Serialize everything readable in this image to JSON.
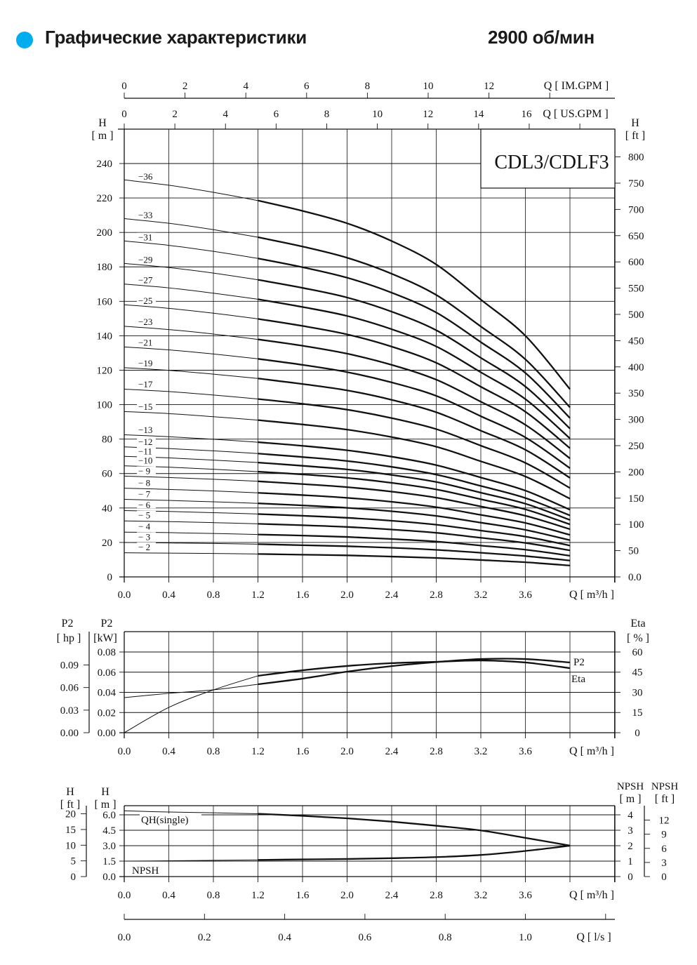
{
  "header": {
    "title": "Графические характеристики",
    "speed": "2900 об/мин",
    "bullet_color": "#00AEEF"
  },
  "chart_data": [
    {
      "id": "qh",
      "type": "line",
      "model_label": "CDL3/CDLF3",
      "x_label": "Q  [ m³/h ]",
      "x_ticks": [
        "0.0",
        "0.4",
        "0.8",
        "1.2",
        "1.6",
        "2.0",
        "2.4",
        "2.8",
        "3.2",
        "3.6"
      ],
      "xlim": [
        0,
        4.4
      ],
      "y_left_label": "H",
      "y_left_unit": "[ m ]",
      "y_left_ticks": [
        0,
        20,
        40,
        60,
        80,
        100,
        120,
        140,
        160,
        180,
        200,
        220,
        240
      ],
      "ylim": [
        0,
        256
      ],
      "y_right_label": "H",
      "y_right_unit": "[ ft ]",
      "y_right_ticks": [
        "0.0",
        "50",
        "100",
        "150",
        "200",
        "250",
        "300",
        "350",
        "400",
        "450",
        "500",
        "550",
        "600",
        "650",
        "700",
        "750",
        "800"
      ],
      "top_axis_us": {
        "label": "Q  [ US.GPM ]",
        "ticks": [
          "0",
          "2",
          "4",
          "6",
          "8",
          "10",
          "12",
          "14",
          "16"
        ]
      },
      "top_axis_im": {
        "label": "Q  [ IM.GPM ]",
        "ticks": [
          "0",
          "2",
          "4",
          "6",
          "8",
          "10",
          "12"
        ]
      },
      "grid": true,
      "x": [
        0,
        0.4,
        0.8,
        1.2,
        1.6,
        2.0,
        2.4,
        2.8,
        3.2,
        3.6,
        4.0
      ],
      "series": [
        {
          "name": "−36",
          "values": [
            230.5,
            227.4,
            223.3,
            218.5,
            212.5,
            205.3,
            195,
            181.4,
            161,
            140,
            109
          ]
        },
        {
          "name": "−33",
          "values": [
            208,
            205.3,
            201.6,
            197.2,
            191.8,
            185.3,
            176,
            163.7,
            145.4,
            126.3,
            98.4
          ]
        },
        {
          "name": "−31",
          "values": [
            195,
            192.5,
            189,
            184.9,
            179.8,
            173.7,
            165,
            153.5,
            136.3,
            118.4,
            92.2
          ]
        },
        {
          "name": "−29",
          "values": [
            182,
            179.6,
            176.4,
            172.5,
            167.8,
            162.2,
            154,
            143.2,
            127.2,
            110.5,
            86.1
          ]
        },
        {
          "name": "−27",
          "values": [
            170,
            167.8,
            164.7,
            161.2,
            156.7,
            151.5,
            143.8,
            133.8,
            118.8,
            103.2,
            80.4
          ]
        },
        {
          "name": "−25",
          "values": [
            158,
            155.9,
            153.1,
            149.8,
            145.7,
            140.8,
            133.7,
            124.3,
            110.4,
            95.9,
            74.7
          ]
        },
        {
          "name": "−23",
          "values": [
            145.5,
            143.6,
            141,
            137.9,
            134.2,
            129.6,
            123.1,
            114.5,
            101.7,
            88.3,
            68.8
          ]
        },
        {
          "name": "−21",
          "values": [
            133.5,
            131.8,
            129.4,
            126.6,
            123.1,
            118.9,
            112.9,
            105.1,
            93.3,
            81,
            63.1
          ]
        },
        {
          "name": "−19",
          "values": [
            121.5,
            119.9,
            117.7,
            115.2,
            112,
            108.3,
            102.8,
            95.6,
            84.9,
            73.8,
            57.5
          ]
        },
        {
          "name": "−17",
          "values": [
            109,
            107.6,
            105.6,
            103.3,
            100.5,
            97.1,
            92.2,
            85.8,
            76.2,
            66.2,
            51.6
          ]
        },
        {
          "name": "−15",
          "values": [
            96,
            94.8,
            93,
            91,
            88.5,
            85.5,
            81.2,
            75.6,
            67.1,
            58.3,
            45.4
          ]
        },
        {
          "name": "−13",
          "values": [
            82.5,
            81.4,
            79.9,
            78.2,
            76.1,
            73.5,
            69.8,
            64.9,
            57.7,
            50.1,
            39
          ]
        },
        {
          "name": "−12",
          "values": [
            75.5,
            74.5,
            73.2,
            71.6,
            69.6,
            67.3,
            63.9,
            59.4,
            52.8,
            45.8,
            35.7
          ]
        },
        {
          "name": "−11",
          "values": [
            70,
            69.1,
            67.8,
            66.4,
            64.5,
            62.4,
            59.2,
            55.1,
            48.9,
            42.5,
            33.1
          ]
        },
        {
          "name": "−10",
          "values": [
            64.5,
            63.7,
            62.5,
            61.1,
            59.5,
            57.5,
            54.6,
            50.8,
            45.1,
            39.2,
            30.5
          ]
        },
        {
          "name": "− 9",
          "values": [
            58.5,
            57.7,
            56.7,
            55.5,
            53.9,
            52.1,
            49.5,
            46,
            40.9,
            35.5,
            27.7
          ]
        },
        {
          "name": "− 8",
          "values": [
            51.5,
            50.8,
            49.9,
            48.8,
            47.5,
            45.9,
            43.6,
            40.5,
            36,
            31.3,
            24.4
          ]
        },
        {
          "name": "− 7",
          "values": [
            45,
            44.4,
            43.6,
            42.7,
            41.5,
            40.1,
            38.1,
            35.4,
            31.5,
            27.3,
            21.3
          ]
        },
        {
          "name": "− 6",
          "values": [
            38.5,
            38,
            37.3,
            36.5,
            35.5,
            34.3,
            32.6,
            30.3,
            26.9,
            23.4,
            18.2
          ]
        },
        {
          "name": "− 5",
          "values": [
            32.5,
            32.1,
            31.5,
            30.8,
            30,
            29,
            27.5,
            25.6,
            22.7,
            19.7,
            15.4
          ]
        },
        {
          "name": "− 4",
          "values": [
            26,
            25.7,
            25.2,
            24.6,
            24,
            23.2,
            22,
            20.5,
            18.2,
            15.8,
            12.3
          ]
        },
        {
          "name": "− 3",
          "values": [
            20,
            19.7,
            19.4,
            19,
            18.4,
            17.8,
            16.9,
            15.7,
            14,
            12.1,
            9.5
          ]
        },
        {
          "name": "− 2",
          "values": [
            14,
            13.8,
            13.6,
            13.3,
            12.9,
            12.5,
            11.8,
            11,
            9.8,
            8.5,
            6.6
          ]
        }
      ]
    },
    {
      "id": "power",
      "type": "line",
      "x_label": "Q  [ m³/h ]",
      "x_ticks": [
        "0.0",
        "0.4",
        "0.8",
        "1.2",
        "1.6",
        "2.0",
        "2.4",
        "2.8",
        "3.2",
        "3.6"
      ],
      "xlim": [
        0,
        4.4
      ],
      "y_left_label": "P2",
      "y_left_unit": "[kW]",
      "y_left_ticks": [
        "0.00",
        "0.02",
        "0.04",
        "0.06",
        "0.08"
      ],
      "ylim": [
        0,
        0.1
      ],
      "y_hp_label": "P2",
      "y_hp_unit": "[ hp ]",
      "y_hp_ticks": [
        "0.00",
        "0.03",
        "0.06",
        "0.09"
      ],
      "y_right_label": "Eta",
      "y_right_unit": "[ % ]",
      "y_right_ticks": [
        "0",
        "15",
        "30",
        "45",
        "60"
      ],
      "grid": true,
      "x": [
        0,
        0.4,
        0.8,
        1.2,
        1.6,
        2.0,
        2.4,
        2.8,
        3.2,
        3.6,
        4.0
      ],
      "series": [
        {
          "name": "P2",
          "axis": "kW",
          "values": [
            0.0348,
            0.039,
            0.0425,
            0.048,
            0.0536,
            0.0605,
            0.066,
            0.07,
            0.073,
            0.073,
            0.0696
          ]
        },
        {
          "name": "Eta",
          "axis": "%",
          "values": [
            0,
            18.8,
            31.8,
            42.3,
            46.4,
            49.6,
            51.7,
            52.7,
            53.7,
            52.2,
            48
          ]
        }
      ]
    },
    {
      "id": "npsh",
      "type": "line",
      "x_label": "Q  [ m³/h ]",
      "x_ticks": [
        "0.0",
        "0.4",
        "0.8",
        "1.2",
        "1.6",
        "2.0",
        "2.4",
        "2.8",
        "3.2",
        "3.6"
      ],
      "xlim": [
        0,
        4.4
      ],
      "y_left_label": "H",
      "y_left_unit": "[ m ]",
      "y_left_ticks": [
        "0.0",
        "1.5",
        "3.0",
        "4.5",
        "6.0"
      ],
      "ylim": [
        0,
        6.9
      ],
      "y_ft_label": "H",
      "y_ft_unit": "[ ft ]",
      "y_ft_ticks": [
        "0",
        "5",
        "10",
        "15",
        "20"
      ],
      "y_right_label": "NPSH",
      "y_right_unit": "[ m ]",
      "y_right_ticks": [
        "0",
        "1",
        "2",
        "3",
        "4"
      ],
      "y_right_ft_label": "NPSH",
      "y_right_ft_unit": "[ ft ]",
      "y_right_ft_ticks": [
        "0",
        "3",
        "6",
        "9",
        "12"
      ],
      "grid": true,
      "x": [
        0,
        0.4,
        0.8,
        1.2,
        1.6,
        2.0,
        2.4,
        2.8,
        3.2,
        3.6,
        4.0
      ],
      "series": [
        {
          "name": "QH(single)",
          "axis": "H m",
          "values": [
            6.39,
            6.27,
            6.2,
            6.1,
            5.9,
            5.66,
            5.34,
            4.94,
            4.48,
            3.76,
            3.01
          ]
        },
        {
          "name": "NPSH",
          "axis": "NPSH m",
          "values": [
            1.0,
            1.02,
            1.05,
            1.08,
            1.11,
            1.14,
            1.19,
            1.26,
            1.4,
            1.66,
            2.0
          ]
        }
      ],
      "ls_axis": {
        "label": "Q  [ l/s ]",
        "ticks": [
          "0.0",
          "0.2",
          "0.4",
          "0.6",
          "0.8",
          "1.0"
        ]
      }
    }
  ]
}
